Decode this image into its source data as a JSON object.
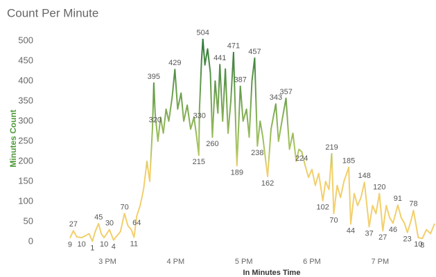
{
  "chart_data": {
    "type": "line",
    "title": "Count Per Minute",
    "x_label": "In Minutes Time",
    "y_label": "Minutes Count",
    "colors": [
      "#f2cf6b",
      "#a9c560",
      "#2f7a3b"
    ],
    "grid": false,
    "xlim": [
      14.4,
      19.8
    ],
    "xticks": [
      {
        "value": 15,
        "label": "3 PM"
      },
      {
        "value": 16,
        "label": "4 PM"
      },
      {
        "value": 17,
        "label": "5 PM"
      },
      {
        "value": 18,
        "label": "6 PM"
      },
      {
        "value": 19,
        "label": "7 PM"
      }
    ],
    "ylim": [
      0,
      500
    ],
    "yticks": [
      0,
      50,
      100,
      150,
      200,
      250,
      300,
      350,
      400,
      450,
      500
    ],
    "x": [
      14.45,
      14.5,
      14.55,
      14.62,
      14.68,
      14.73,
      14.78,
      14.82,
      14.87,
      14.91,
      14.95,
      14.99,
      15.03,
      15.09,
      15.14,
      15.19,
      15.25,
      15.3,
      15.35,
      15.39,
      15.43,
      15.48,
      15.53,
      15.58,
      15.62,
      15.66,
      15.68,
      15.7,
      15.74,
      15.78,
      15.82,
      15.86,
      15.9,
      15.95,
      15.99,
      16.03,
      16.08,
      16.12,
      16.17,
      16.22,
      16.27,
      16.31,
      16.34,
      16.35,
      16.38,
      16.4,
      16.43,
      16.47,
      16.51,
      16.54,
      16.58,
      16.62,
      16.65,
      16.69,
      16.73,
      16.77,
      16.81,
      16.85,
      16.9,
      16.95,
      16.99,
      17.04,
      17.08,
      17.12,
      17.16,
      17.2,
      17.24,
      17.28,
      17.35,
      17.4,
      17.47,
      17.51,
      17.56,
      17.62,
      17.67,
      17.72,
      17.77,
      17.81,
      17.85,
      17.9,
      17.95,
      18,
      18.05,
      18.1,
      18.16,
      18.2,
      18.25,
      18.29,
      18.32,
      18.37,
      18.42,
      18.47,
      18.54,
      18.57,
      18.62,
      18.67,
      18.72,
      18.77,
      18.84,
      18.89,
      18.94,
      18.99,
      19.04,
      19.09,
      19.14,
      19.19,
      19.26,
      19.31,
      19.36,
      19.4,
      19.45,
      19.49,
      19.56,
      19.62,
      19.68,
      19.74,
      19.8
    ],
    "values": [
      9,
      27,
      12,
      10,
      15,
      20,
      1,
      25,
      45,
      20,
      10,
      20,
      30,
      4,
      15,
      25,
      70,
      40,
      30,
      11,
      64,
      90,
      130,
      200,
      150,
      280,
      395,
      320,
      250,
      310,
      270,
      330,
      300,
      360,
      429,
      330,
      370,
      300,
      340,
      280,
      310,
      260,
      215,
      330,
      450,
      504,
      440,
      480,
      420,
      260,
      400,
      320,
      441,
      300,
      430,
      270,
      350,
      471,
      189,
      387,
      300,
      330,
      260,
      400,
      457,
      238,
      300,
      260,
      162,
      280,
      343,
      250,
      300,
      357,
      230,
      270,
      200,
      230,
      224,
      190,
      160,
      180,
      140,
      170,
      102,
      150,
      130,
      219,
      70,
      140,
      110,
      150,
      185,
      44,
      120,
      90,
      110,
      148,
      37,
      90,
      70,
      120,
      27,
      90,
      60,
      46,
      91,
      60,
      45,
      23,
      50,
      78,
      10,
      8,
      30,
      20,
      45
    ],
    "value_labels": [
      "9",
      "27",
      null,
      "10",
      null,
      null,
      "1",
      null,
      "45",
      null,
      "10",
      null,
      "30",
      "4",
      null,
      null,
      "70",
      null,
      null,
      "11",
      "64",
      null,
      null,
      null,
      null,
      null,
      "395",
      "320",
      null,
      null,
      null,
      null,
      null,
      null,
      "429",
      null,
      null,
      null,
      null,
      null,
      null,
      null,
      "215",
      "330",
      null,
      "504",
      null,
      null,
      null,
      "260",
      null,
      null,
      "441",
      null,
      null,
      null,
      null,
      "471",
      "189",
      "387",
      null,
      null,
      null,
      null,
      "457",
      "238",
      null,
      null,
      "162",
      null,
      "343",
      null,
      null,
      "357",
      null,
      null,
      null,
      null,
      "224",
      null,
      null,
      null,
      null,
      null,
      "102",
      null,
      null,
      "219",
      "70",
      null,
      null,
      null,
      "185",
      "44",
      null,
      null,
      null,
      "148",
      "37",
      null,
      null,
      "120",
      "27",
      null,
      null,
      "46",
      "91",
      null,
      null,
      "23",
      null,
      "78",
      "10",
      "8",
      null,
      null,
      null
    ]
  }
}
